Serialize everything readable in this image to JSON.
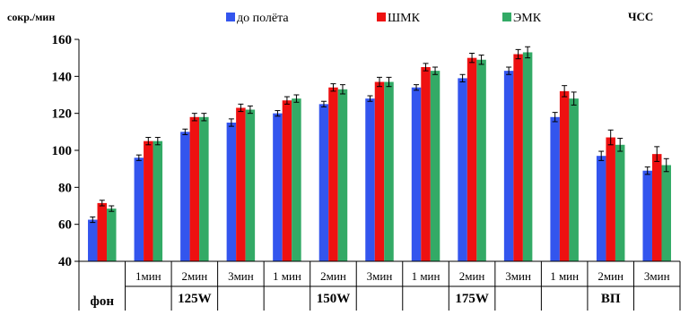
{
  "chart_data": {
    "type": "bar",
    "ylabel": "сокр./мин",
    "title": "ЧСС",
    "ylim": [
      40,
      160
    ],
    "yticks": [
      40,
      60,
      80,
      100,
      120,
      140,
      160
    ],
    "grid": false,
    "legend_position": "top",
    "categories": [
      {
        "label": "",
        "group": "фон"
      },
      {
        "label": "1мин",
        "group": "125W"
      },
      {
        "label": "2мин",
        "group": "125W"
      },
      {
        "label": "3мин",
        "group": "125W"
      },
      {
        "label": "1 мин",
        "group": "150W"
      },
      {
        "label": "2мин",
        "group": "150W"
      },
      {
        "label": "3мин",
        "group": "150W"
      },
      {
        "label": "1 мин",
        "group": "175W"
      },
      {
        "label": "2мин",
        "group": "175W"
      },
      {
        "label": "3мин",
        "group": "175W"
      },
      {
        "label": "1 мин",
        "group": "ВП"
      },
      {
        "label": "2мин",
        "group": "ВП"
      },
      {
        "label": "3мин",
        "group": "ВП"
      }
    ],
    "groups": [
      "фон",
      "125W",
      "150W",
      "175W",
      "ВП"
    ],
    "series": [
      {
        "name": "до полёта",
        "color": "#3355ee",
        "values": [
          62.5,
          96,
          110,
          115,
          120,
          125,
          128,
          134,
          139,
          143,
          118,
          97,
          89
        ],
        "errors": [
          1.5,
          1.5,
          1.5,
          2,
          1.5,
          1.5,
          1.5,
          1.5,
          2,
          2,
          2.5,
          2.5,
          2
        ]
      },
      {
        "name": "ШМК",
        "color": "#ee1111",
        "values": [
          71.5,
          105,
          118,
          123,
          127,
          134,
          137,
          145,
          150,
          152,
          132,
          107,
          98
        ],
        "errors": [
          1.5,
          2,
          2,
          2,
          2,
          2,
          2.5,
          2,
          2.5,
          2.5,
          3,
          4,
          4
        ]
      },
      {
        "name": "ЭМК",
        "color": "#33aa66",
        "values": [
          68.5,
          105,
          118,
          122,
          128,
          133,
          137,
          143,
          149,
          153,
          128,
          103,
          92
        ],
        "errors": [
          1.5,
          2,
          2,
          2,
          2,
          2.5,
          2.5,
          2,
          2.5,
          3,
          3.5,
          3.5,
          3.5
        ]
      }
    ]
  }
}
